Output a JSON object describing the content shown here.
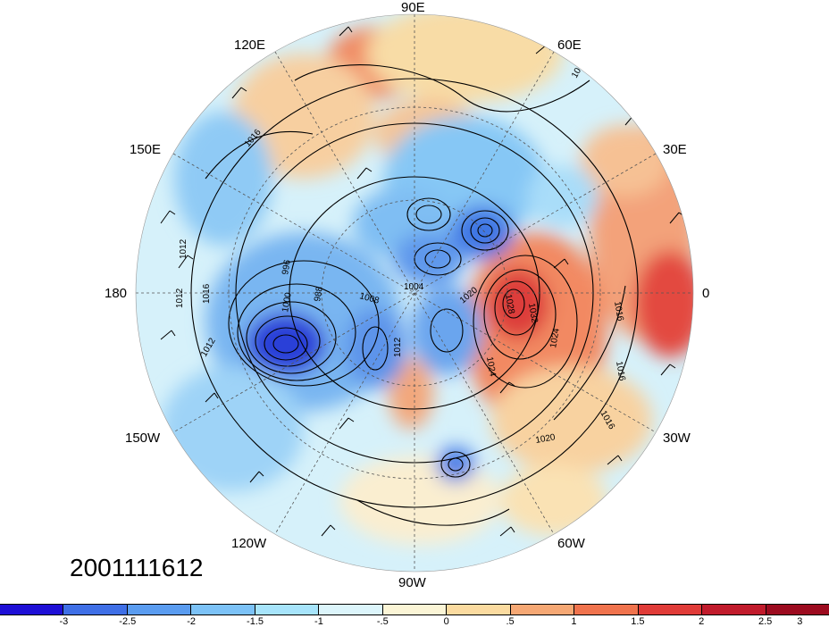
{
  "datestamp": "2001111612",
  "longitude_labels": {
    "lon_90e": "90E",
    "lon_120e": "120E",
    "lon_60e": "60E",
    "lon_150e": "150E",
    "lon_30e": "30E",
    "lon_180": "180",
    "lon_0": "0",
    "lon_150w": "150W",
    "lon_30w": "30W",
    "lon_120w": "120W",
    "lon_60w": "60W",
    "lon_90w": "90W"
  },
  "isobar_labels": [
    "1012",
    "1016",
    "1012",
    "1012",
    "1016",
    "996",
    "988",
    "1000",
    "1004",
    "1008",
    "1020",
    "1032",
    "1028",
    "1024",
    "1016",
    "1016",
    "1020",
    "1016",
    "1012",
    "1012",
    "1024"
  ],
  "colorbar": {
    "colors": [
      "#1e0fd6",
      "#3f6fe6",
      "#5a9cf0",
      "#7cc2f7",
      "#a7e4fb",
      "#dcf5fb",
      "#fbf5d6",
      "#fbdba0",
      "#f6a874",
      "#f0734d",
      "#e03b38",
      "#c11b2c",
      "#9c0b1f"
    ],
    "labels": [
      "-3",
      "-2.5",
      "-2",
      "-1.5",
      "-1",
      "-.5",
      "0",
      ".5",
      "1",
      "1.5",
      "2",
      "2.5",
      "3"
    ]
  }
}
